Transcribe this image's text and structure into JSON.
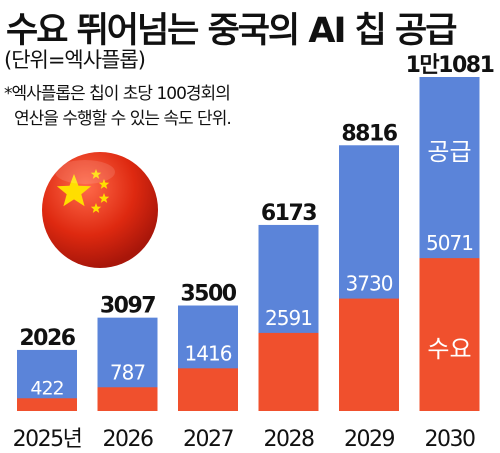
{
  "title": "수요 뛰어넘는 중국의 AI 칩 공급",
  "unit": "(단위=엑사플롭)",
  "note_lines": [
    "*엑사플롭은 칩이 초당 100경회의",
    "연산을 수행할 수 있는 속도 단위."
  ],
  "colors": {
    "supply": "#5b84d9",
    "demand": "#f0502d",
    "flag_red": "#de2910",
    "flag_star": "#ffde00"
  },
  "icons": {
    "flag": "china-flag-icon"
  },
  "chart_data": {
    "type": "bar",
    "categories": [
      "2025년",
      "2026",
      "2027",
      "2028",
      "2029",
      "2030"
    ],
    "series": [
      {
        "name": "공급",
        "values": [
          2026,
          3097,
          3500,
          6173,
          8816,
          11081
        ]
      },
      {
        "name": "수요",
        "values": [
          422,
          787,
          1416,
          2591,
          3730,
          5071
        ]
      }
    ],
    "total_labels": [
      "2026",
      "3097",
      "3500",
      "6173",
      "8816",
      "1만1081"
    ],
    "demand_labels": [
      "422",
      "787",
      "1416",
      "2591",
      "3730",
      "5071"
    ],
    "ylim": [
      0,
      11081
    ]
  }
}
